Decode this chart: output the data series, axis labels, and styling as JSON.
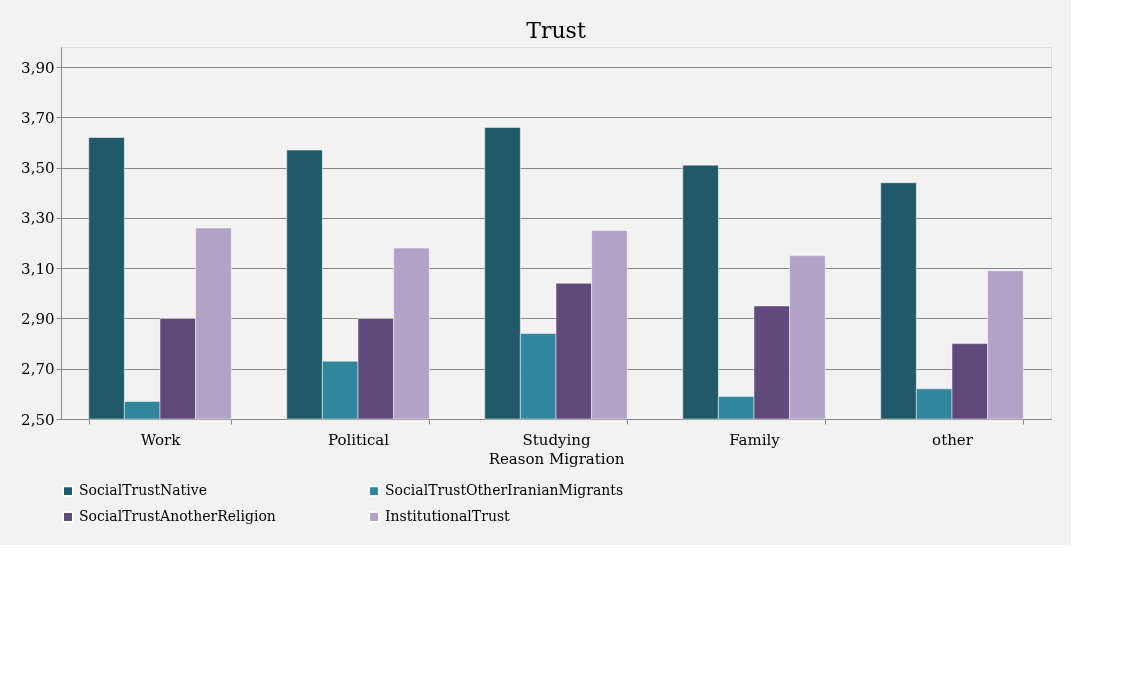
{
  "chart_data": {
    "type": "bar",
    "title": "Trust",
    "xlabel": "Reason Migration",
    "categories": [
      "Work",
      "Political",
      "Studying",
      "Family",
      "other"
    ],
    "series": [
      {
        "name": "SocialTrustNative",
        "color": "#215968",
        "values": [
          3.62,
          3.57,
          3.66,
          3.51,
          3.44
        ]
      },
      {
        "name": "SocialTrustOtherIranianMigrants",
        "color": "#31859c",
        "values": [
          2.57,
          2.73,
          2.84,
          2.59,
          2.62
        ]
      },
      {
        "name": "SocialTrustAnotherReligion",
        "color": "#604a7b",
        "values": [
          2.9,
          2.9,
          3.04,
          2.95,
          2.8
        ]
      },
      {
        "name": "InstitutionalTrust",
        "color": "#b3a2c7",
        "values": [
          3.26,
          3.18,
          3.25,
          3.15,
          3.09
        ]
      }
    ],
    "ylim": [
      2.5,
      3.98
    ],
    "yticks": [
      {
        "value": 2.5,
        "label": "2,50"
      },
      {
        "value": 2.7,
        "label": "2,70"
      },
      {
        "value": 2.9,
        "label": "2,90"
      },
      {
        "value": 3.1,
        "label": "3,10"
      },
      {
        "value": 3.3,
        "label": "3,30"
      },
      {
        "value": 3.5,
        "label": "3,50"
      },
      {
        "value": 3.7,
        "label": "3,70"
      },
      {
        "value": 3.9,
        "label": "3,90"
      }
    ],
    "grid": "y",
    "legend": "bottom"
  }
}
